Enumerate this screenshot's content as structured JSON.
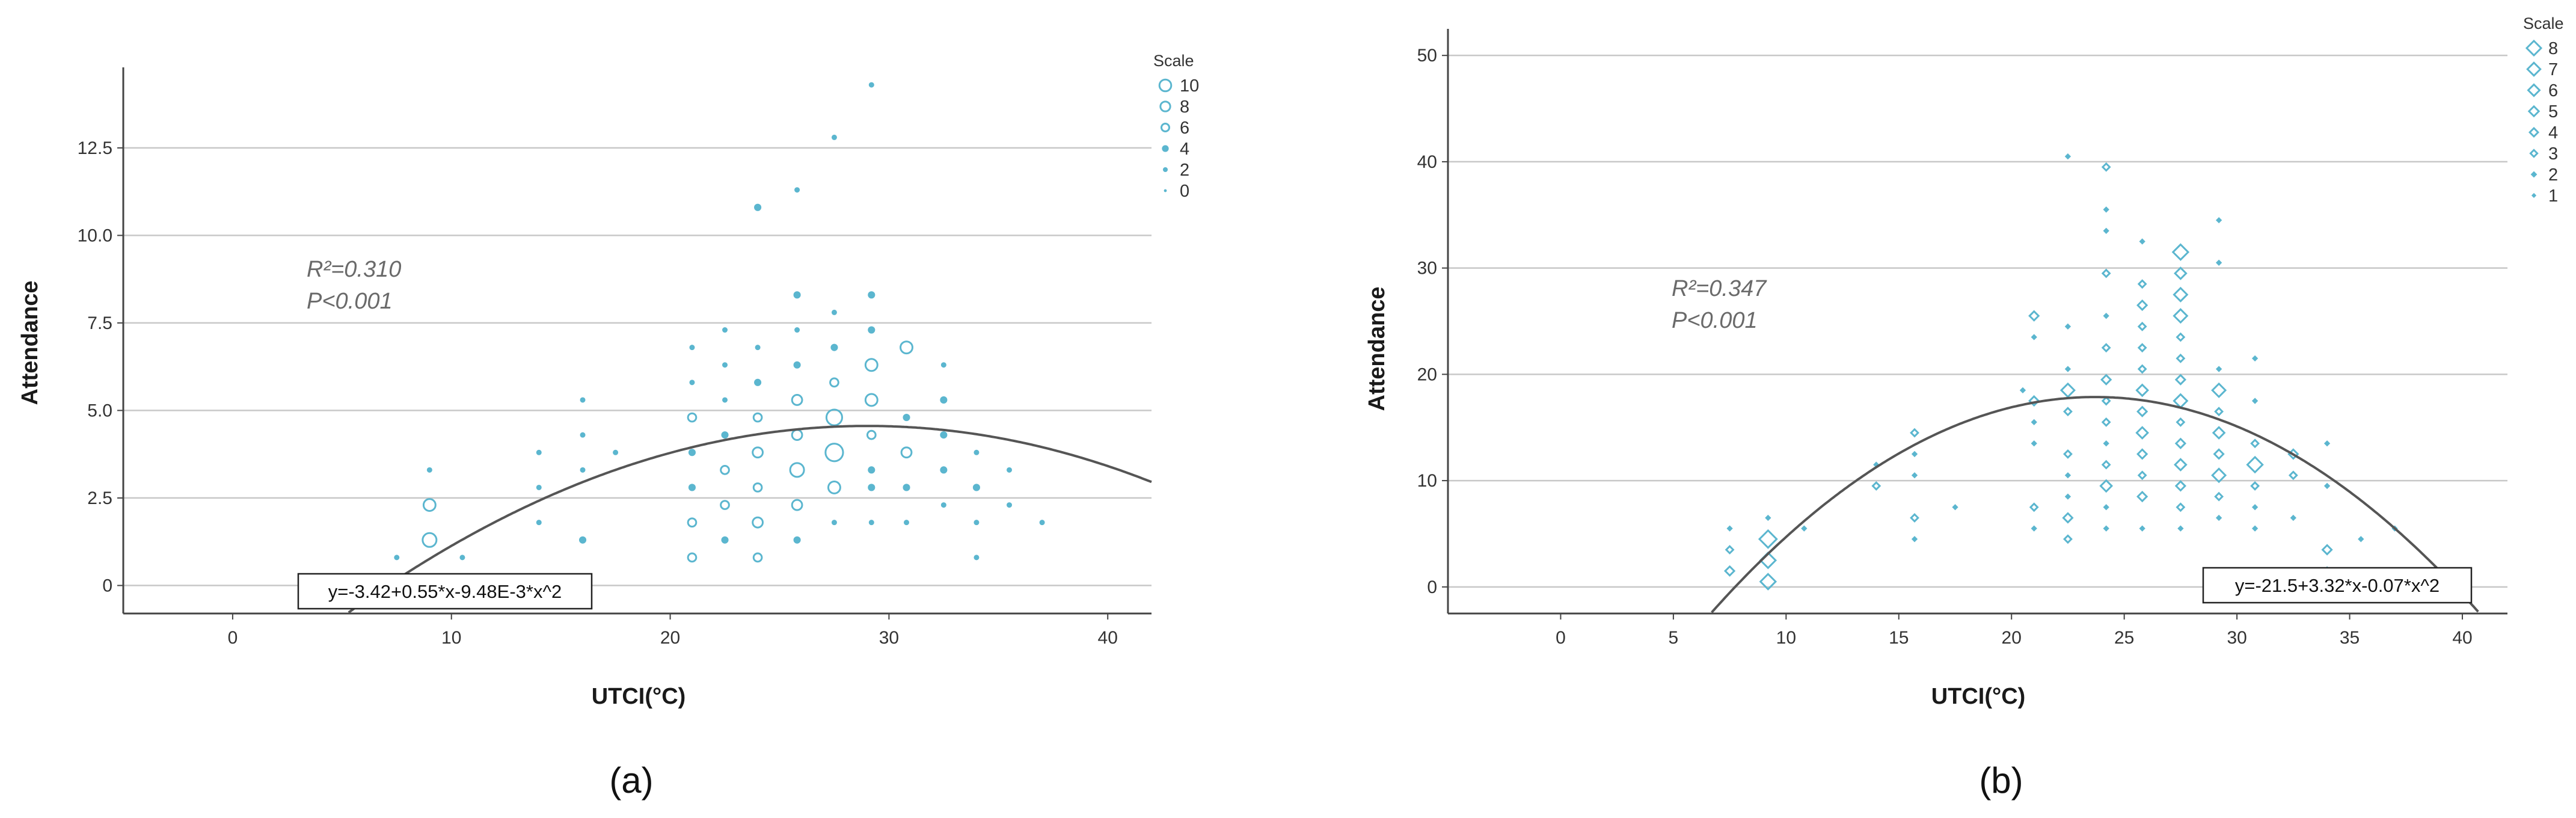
{
  "colors": {
    "marker": "#5bb6cf",
    "grid": "#c8c8c8",
    "axis": "#444444",
    "curve": "#555555",
    "text": "#1a1a1a"
  },
  "chart_data": [
    {
      "type": "scatter",
      "panel_label": "(a)",
      "xlabel": "UTCI(°C)",
      "ylabel": "Attendance",
      "xlim": [
        -5,
        42
      ],
      "ylim": [
        -0.8,
        14.8
      ],
      "xticks": [
        0,
        10,
        20,
        30,
        40
      ],
      "yticks": [
        0,
        2.5,
        5.0,
        7.5,
        10.0,
        12.5
      ],
      "ytick_labels": [
        "0",
        "2.5",
        "5.0",
        "7.5",
        "10.0",
        "12.5"
      ],
      "grid": "horizontal",
      "marker_shape": "circle",
      "fit": {
        "equation": "y=-3.42+0.55*x-9.48E-3*x^2",
        "coefficients": [
          -3.42,
          0.55,
          -0.00948
        ],
        "r_squared_text": "R²=0.310",
        "p_text": "P<0.001"
      },
      "legend": {
        "title": "Scale",
        "position": "right",
        "entries": [
          {
            "label": "10",
            "scale": 10
          },
          {
            "label": "8",
            "scale": 8
          },
          {
            "label": "6",
            "scale": 6
          },
          {
            "label": "4",
            "scale": 4
          },
          {
            "label": "2",
            "scale": 2
          },
          {
            "label": "0",
            "scale": 0
          }
        ]
      },
      "points": [
        [
          7.5,
          0.8,
          1
        ],
        [
          9,
          1.3,
          6
        ],
        [
          9,
          2.3,
          5
        ],
        [
          9,
          3.3,
          1
        ],
        [
          10.5,
          0.8,
          1
        ],
        [
          14,
          1.8,
          1
        ],
        [
          14,
          2.8,
          1
        ],
        [
          14,
          3.8,
          1
        ],
        [
          16,
          1.3,
          2
        ],
        [
          16,
          3.3,
          1
        ],
        [
          16,
          4.3,
          1
        ],
        [
          16,
          5.3,
          1
        ],
        [
          17.5,
          3.8,
          1
        ],
        [
          21,
          0.8,
          3
        ],
        [
          21,
          1.8,
          3
        ],
        [
          21,
          2.8,
          2
        ],
        [
          21,
          3.8,
          2
        ],
        [
          21,
          4.8,
          3
        ],
        [
          21,
          5.8,
          1
        ],
        [
          21,
          6.8,
          1
        ],
        [
          22.5,
          1.3,
          2
        ],
        [
          22.5,
          2.3,
          3
        ],
        [
          22.5,
          3.3,
          3
        ],
        [
          22.5,
          4.3,
          2
        ],
        [
          22.5,
          5.3,
          1
        ],
        [
          22.5,
          6.3,
          1
        ],
        [
          22.5,
          7.3,
          1
        ],
        [
          24,
          0.8,
          3
        ],
        [
          24,
          1.8,
          4
        ],
        [
          24,
          2.8,
          3
        ],
        [
          24,
          3.8,
          4
        ],
        [
          24,
          4.8,
          3
        ],
        [
          24,
          5.8,
          2
        ],
        [
          24,
          6.8,
          1
        ],
        [
          24,
          10.8,
          2
        ],
        [
          25.8,
          1.3,
          2
        ],
        [
          25.8,
          2.3,
          4
        ],
        [
          25.8,
          3.3,
          6
        ],
        [
          25.8,
          4.3,
          4
        ],
        [
          25.8,
          5.3,
          4
        ],
        [
          25.8,
          6.3,
          2
        ],
        [
          25.8,
          7.3,
          1
        ],
        [
          25.8,
          8.3,
          2
        ],
        [
          25.8,
          11.3,
          1
        ],
        [
          27.5,
          1.8,
          1
        ],
        [
          27.5,
          2.8,
          5
        ],
        [
          27.5,
          3.8,
          8
        ],
        [
          27.5,
          4.8,
          7
        ],
        [
          27.5,
          5.8,
          3
        ],
        [
          27.5,
          6.8,
          2
        ],
        [
          27.5,
          7.8,
          1
        ],
        [
          27.5,
          12.8,
          1
        ],
        [
          29.2,
          1.8,
          1
        ],
        [
          29.2,
          2.8,
          2
        ],
        [
          29.2,
          3.3,
          2
        ],
        [
          29.2,
          4.3,
          3
        ],
        [
          29.2,
          5.3,
          5
        ],
        [
          29.2,
          6.3,
          5
        ],
        [
          29.2,
          7.3,
          2
        ],
        [
          29.2,
          8.3,
          2
        ],
        [
          29.2,
          14.3,
          1
        ],
        [
          30.8,
          1.8,
          1
        ],
        [
          30.8,
          2.8,
          2
        ],
        [
          30.8,
          3.8,
          4
        ],
        [
          30.8,
          4.8,
          2
        ],
        [
          30.8,
          6.8,
          5
        ],
        [
          32.5,
          2.3,
          1
        ],
        [
          32.5,
          3.3,
          2
        ],
        [
          32.5,
          4.3,
          2
        ],
        [
          32.5,
          5.3,
          2
        ],
        [
          32.5,
          6.3,
          1
        ],
        [
          34,
          0.8,
          1
        ],
        [
          34,
          1.8,
          1
        ],
        [
          34,
          2.8,
          2
        ],
        [
          34,
          3.8,
          1
        ],
        [
          35.5,
          2.3,
          1
        ],
        [
          35.5,
          3.3,
          1
        ],
        [
          37,
          1.8,
          1
        ]
      ]
    },
    {
      "type": "scatter",
      "panel_label": "(b)",
      "xlabel": "UTCI(°C)",
      "ylabel": "Attendance",
      "xlim": [
        -5,
        42
      ],
      "ylim": [
        -2.5,
        52.5
      ],
      "xticks": [
        0,
        5,
        10,
        15,
        20,
        25,
        30,
        35,
        40
      ],
      "yticks": [
        0,
        10,
        20,
        30,
        40,
        50
      ],
      "ytick_labels": [
        "0",
        "10",
        "20",
        "30",
        "40",
        "50"
      ],
      "grid": "horizontal",
      "marker_shape": "diamond",
      "fit": {
        "equation": "y=-21.5+3.32*x-0.07*x^2",
        "coefficients": [
          -21.5,
          3.32,
          -0.07
        ],
        "r_squared_text": "R²=0.347",
        "p_text": "P<0.001"
      },
      "legend": {
        "title": "Scale",
        "position": "right",
        "entries": [
          {
            "label": "8",
            "scale": 8
          },
          {
            "label": "7",
            "scale": 7
          },
          {
            "label": "6",
            "scale": 6
          },
          {
            "label": "5",
            "scale": 5
          },
          {
            "label": "4",
            "scale": 4
          },
          {
            "label": "3",
            "scale": 3
          },
          {
            "label": "2",
            "scale": 2
          },
          {
            "label": "1",
            "scale": 1
          }
        ]
      },
      "points": [
        [
          7.5,
          1.5,
          3
        ],
        [
          7.5,
          3.5,
          2
        ],
        [
          7.5,
          5.5,
          1
        ],
        [
          9.2,
          0.5,
          6
        ],
        [
          9.2,
          2.5,
          6
        ],
        [
          9.2,
          4.5,
          7
        ],
        [
          9.2,
          6.5,
          1
        ],
        [
          10.8,
          5.5,
          1
        ],
        [
          14,
          9.5,
          2
        ],
        [
          14,
          11.5,
          1
        ],
        [
          15.7,
          4.5,
          1
        ],
        [
          15.7,
          6.5,
          2
        ],
        [
          15.7,
          10.5,
          1
        ],
        [
          15.7,
          12.5,
          1
        ],
        [
          15.7,
          14.5,
          2
        ],
        [
          17.5,
          7.5,
          1
        ],
        [
          20.5,
          18.5,
          1
        ],
        [
          21,
          5.5,
          1
        ],
        [
          21,
          7.5,
          2
        ],
        [
          21,
          13.5,
          1
        ],
        [
          21,
          15.5,
          1
        ],
        [
          21,
          17.5,
          3
        ],
        [
          21,
          23.5,
          1
        ],
        [
          21,
          25.5,
          3
        ],
        [
          22.5,
          4.5,
          2
        ],
        [
          22.5,
          6.5,
          3
        ],
        [
          22.5,
          8.5,
          1
        ],
        [
          22.5,
          10.5,
          1
        ],
        [
          22.5,
          12.5,
          2
        ],
        [
          22.5,
          16.5,
          2
        ],
        [
          22.5,
          18.5,
          5
        ],
        [
          22.5,
          20.5,
          1
        ],
        [
          22.5,
          24.5,
          1
        ],
        [
          22.5,
          40.5,
          1
        ],
        [
          24.2,
          5.5,
          1
        ],
        [
          24.2,
          7.5,
          1
        ],
        [
          24.2,
          9.5,
          4
        ],
        [
          24.2,
          11.5,
          2
        ],
        [
          24.2,
          13.5,
          1
        ],
        [
          24.2,
          15.5,
          2
        ],
        [
          24.2,
          17.5,
          2
        ],
        [
          24.2,
          19.5,
          3
        ],
        [
          24.2,
          22.5,
          2
        ],
        [
          24.2,
          25.5,
          1
        ],
        [
          24.2,
          29.5,
          2
        ],
        [
          24.2,
          33.5,
          1
        ],
        [
          24.2,
          35.5,
          1
        ],
        [
          24.2,
          39.5,
          2
        ],
        [
          25.8,
          5.5,
          1
        ],
        [
          25.8,
          8.5,
          3
        ],
        [
          25.8,
          10.5,
          2
        ],
        [
          25.8,
          12.5,
          3
        ],
        [
          25.8,
          14.5,
          4
        ],
        [
          25.8,
          16.5,
          3
        ],
        [
          25.8,
          18.5,
          4
        ],
        [
          25.8,
          20.5,
          2
        ],
        [
          25.8,
          22.5,
          2
        ],
        [
          25.8,
          24.5,
          2
        ],
        [
          25.8,
          26.5,
          3
        ],
        [
          25.8,
          28.5,
          2
        ],
        [
          25.8,
          32.5,
          1
        ],
        [
          27.5,
          5.5,
          1
        ],
        [
          27.5,
          7.5,
          2
        ],
        [
          27.5,
          9.5,
          3
        ],
        [
          27.5,
          11.5,
          4
        ],
        [
          27.5,
          13.5,
          3
        ],
        [
          27.5,
          15.5,
          2
        ],
        [
          27.5,
          17.5,
          5
        ],
        [
          27.5,
          19.5,
          3
        ],
        [
          27.5,
          21.5,
          2
        ],
        [
          27.5,
          23.5,
          2
        ],
        [
          27.5,
          25.5,
          5
        ],
        [
          27.5,
          27.5,
          5
        ],
        [
          27.5,
          29.5,
          4
        ],
        [
          27.5,
          31.5,
          6
        ],
        [
          29.2,
          6.5,
          1
        ],
        [
          29.2,
          8.5,
          2
        ],
        [
          29.2,
          10.5,
          5
        ],
        [
          29.2,
          12.5,
          3
        ],
        [
          29.2,
          14.5,
          4
        ],
        [
          29.2,
          16.5,
          2
        ],
        [
          29.2,
          18.5,
          5
        ],
        [
          29.2,
          20.5,
          1
        ],
        [
          29.2,
          30.5,
          1
        ],
        [
          29.2,
          34.5,
          1
        ],
        [
          30.8,
          5.5,
          1
        ],
        [
          30.8,
          7.5,
          1
        ],
        [
          30.8,
          9.5,
          2
        ],
        [
          30.8,
          11.5,
          6
        ],
        [
          30.8,
          13.5,
          2
        ],
        [
          30.8,
          17.5,
          1
        ],
        [
          30.8,
          21.5,
          1
        ],
        [
          32.5,
          6.5,
          1
        ],
        [
          32.5,
          10.5,
          2
        ],
        [
          32.5,
          12.5,
          3
        ],
        [
          34,
          1.5,
          2
        ],
        [
          34,
          3.5,
          3
        ],
        [
          34,
          9.5,
          1
        ],
        [
          34,
          13.5,
          1
        ],
        [
          35.5,
          4.5,
          1
        ],
        [
          37,
          5.5,
          1
        ]
      ]
    }
  ]
}
